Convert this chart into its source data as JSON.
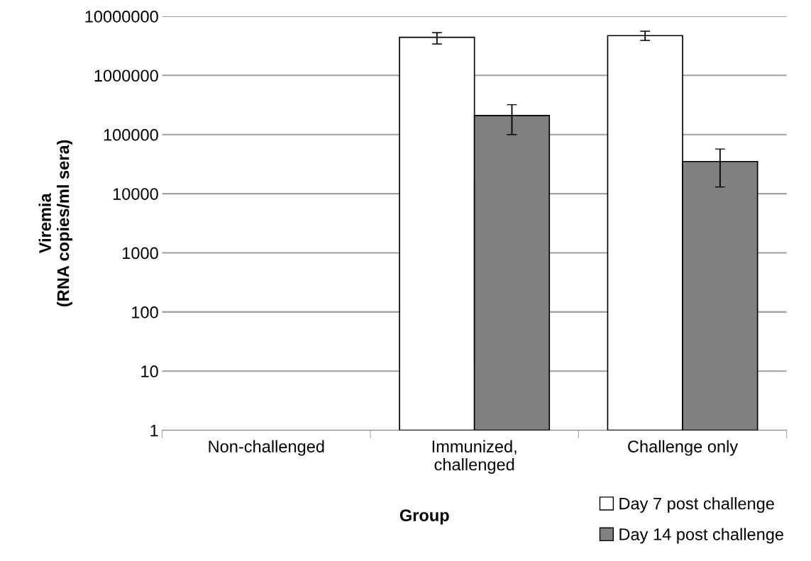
{
  "chart_data": {
    "type": "bar",
    "xlabel": "Group",
    "ylabel": "Viremia\n(RNA copies/ml sera)",
    "categories": [
      "Non-challenged",
      "Immunized,\nchallenged",
      "Challenge only"
    ],
    "series": [
      {
        "name": "Day 7 post challenge",
        "color": "#ffffff",
        "values": [
          null,
          4400000,
          4700000
        ],
        "errors": [
          null,
          [
            3400000,
            5300000
          ],
          [
            3900000,
            5600000
          ]
        ]
      },
      {
        "name": "Day 14 post challenge",
        "color": "#808080",
        "values": [
          null,
          210000,
          35000
        ],
        "errors": [
          null,
          [
            100000,
            320000
          ],
          [
            13000,
            57000
          ]
        ]
      }
    ],
    "log": "y",
    "ylim": [
      1,
      10000000
    ],
    "yticks": [
      1,
      10,
      100,
      1000,
      10000,
      100000,
      1000000,
      10000000
    ],
    "grid": "y",
    "legend": "bottom right"
  }
}
